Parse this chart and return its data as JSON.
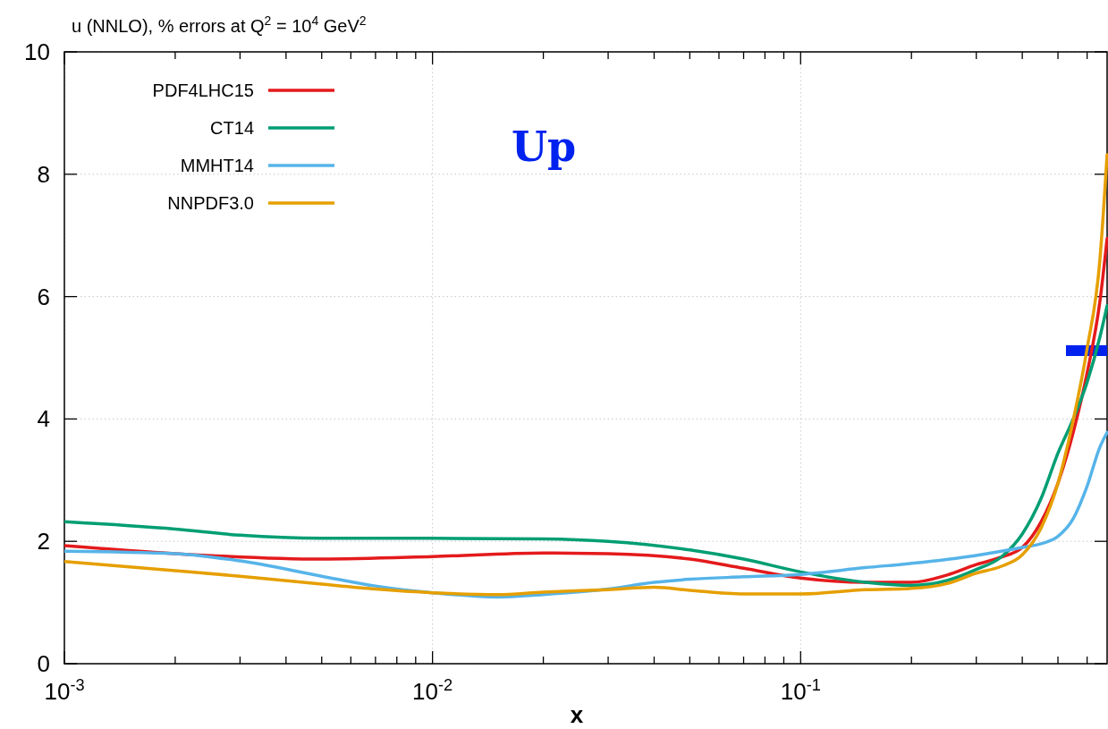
{
  "chart_data": {
    "type": "line",
    "title": "u (NNLO), % errors at Q$^{2}$ = 10$^{4}$ GeV$^{2}$",
    "xlabel": "x",
    "log": "x",
    "grid": true,
    "legend": "top left",
    "line_style": "solid",
    "marker": "none",
    "annotations": [
      "Up"
    ],
    "xlim": [
      0.001,
      0.68
    ],
    "ylim": [
      0,
      10
    ],
    "xticks": [
      {
        "value": 0.001,
        "label": "10$^{-3}$"
      },
      {
        "value": 0.002,
        "label": null
      },
      {
        "value": 0.003,
        "label": null
      },
      {
        "value": 0.004,
        "label": null
      },
      {
        "value": 0.005,
        "label": null
      },
      {
        "value": 0.006,
        "label": null
      },
      {
        "value": 0.007,
        "label": null
      },
      {
        "value": 0.008,
        "label": null
      },
      {
        "value": 0.009,
        "label": null
      },
      {
        "value": 0.01,
        "label": "10$^{-2}$"
      },
      {
        "value": 0.02,
        "label": null
      },
      {
        "value": 0.03,
        "label": null
      },
      {
        "value": 0.04,
        "label": null
      },
      {
        "value": 0.05,
        "label": null
      },
      {
        "value": 0.06,
        "label": null
      },
      {
        "value": 0.07,
        "label": null
      },
      {
        "value": 0.08,
        "label": null
      },
      {
        "value": 0.09,
        "label": null
      },
      {
        "value": 0.1,
        "label": "10$^{-1}$"
      },
      {
        "value": 0.2,
        "label": null
      },
      {
        "value": 0.3,
        "label": null
      },
      {
        "value": 0.4,
        "label": null
      },
      {
        "value": 0.5,
        "label": null
      },
      {
        "value": 0.6,
        "label": null
      }
    ],
    "yticks": [
      0,
      2,
      4,
      6,
      8,
      10
    ],
    "series": [
      {
        "name": "PDF4LHC15",
        "color": "#e41a1c",
        "x": [
          0.001,
          0.002,
          0.005,
          0.01,
          0.02,
          0.03,
          0.05,
          0.07,
          0.1,
          0.15,
          0.2,
          0.25,
          0.3,
          0.35,
          0.4,
          0.45,
          0.5,
          0.55,
          0.6,
          0.65,
          0.68
        ],
        "values": [
          1.93,
          1.8,
          1.71,
          1.75,
          1.81,
          1.8,
          1.71,
          1.56,
          1.4,
          1.33,
          1.33,
          1.45,
          1.62,
          1.74,
          1.9,
          2.32,
          2.95,
          3.78,
          4.75,
          5.92,
          6.95
        ]
      },
      {
        "name": "CT14",
        "color": "#009e73",
        "x": [
          0.001,
          0.002,
          0.003,
          0.005,
          0.01,
          0.02,
          0.03,
          0.05,
          0.07,
          0.1,
          0.15,
          0.2,
          0.25,
          0.3,
          0.35,
          0.4,
          0.45,
          0.5,
          0.55,
          0.6,
          0.65,
          0.68
        ],
        "values": [
          2.32,
          2.2,
          2.1,
          2.05,
          2.05,
          2.04,
          2.0,
          1.86,
          1.71,
          1.5,
          1.33,
          1.28,
          1.36,
          1.54,
          1.74,
          2.12,
          2.7,
          3.44,
          4.0,
          4.6,
          5.34,
          5.85
        ]
      },
      {
        "name": "MMHT14",
        "color": "#56b4e9",
        "x": [
          0.001,
          0.002,
          0.003,
          0.005,
          0.007,
          0.01,
          0.015,
          0.02,
          0.03,
          0.04,
          0.05,
          0.07,
          0.1,
          0.15,
          0.2,
          0.3,
          0.4,
          0.45,
          0.5,
          0.55,
          0.6,
          0.65,
          0.68
        ],
        "values": [
          1.84,
          1.8,
          1.68,
          1.43,
          1.27,
          1.16,
          1.09,
          1.13,
          1.22,
          1.33,
          1.38,
          1.42,
          1.46,
          1.57,
          1.64,
          1.77,
          1.9,
          1.96,
          2.08,
          2.37,
          2.9,
          3.54,
          3.78
        ]
      },
      {
        "name": "NNPDF3.0",
        "color": "#e69f00",
        "x": [
          0.001,
          0.002,
          0.003,
          0.005,
          0.007,
          0.01,
          0.015,
          0.02,
          0.03,
          0.04,
          0.05,
          0.07,
          0.1,
          0.15,
          0.2,
          0.25,
          0.3,
          0.35,
          0.4,
          0.45,
          0.5,
          0.55,
          0.6,
          0.65,
          0.68
        ],
        "values": [
          1.67,
          1.52,
          1.43,
          1.3,
          1.22,
          1.16,
          1.13,
          1.17,
          1.21,
          1.25,
          1.2,
          1.14,
          1.14,
          1.21,
          1.23,
          1.31,
          1.48,
          1.59,
          1.78,
          2.22,
          2.95,
          3.98,
          5.15,
          6.6,
          8.32
        ]
      }
    ]
  }
}
